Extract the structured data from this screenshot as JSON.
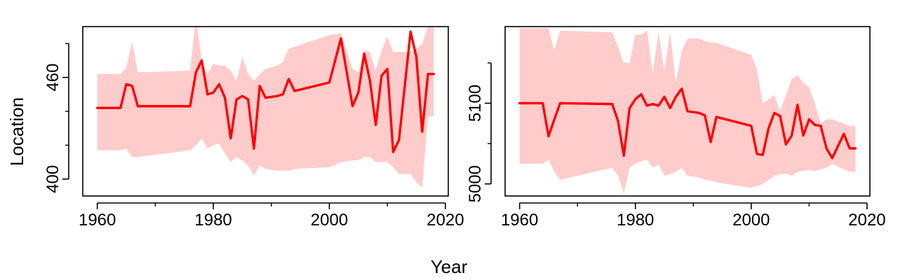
{
  "chart_data": [
    {
      "type": "line",
      "panel": "left",
      "xlabel": "Year",
      "ylabel": "Location",
      "xlim": [
        1957.5,
        2020.5
      ],
      "ylim": [
        390,
        490
      ],
      "xticks": [
        1960,
        1980,
        2000,
        2020
      ],
      "xtick_labels": [
        "1960",
        "1980",
        "2000",
        "2020"
      ],
      "xminor": [
        1970,
        1990,
        2010
      ],
      "yticks": [
        400,
        460
      ],
      "ytick_labels": [
        "400",
        "460"
      ],
      "yminor": [
        420,
        440,
        480
      ],
      "colors": {
        "line": "#ff0000",
        "band": "#ffcccc"
      },
      "series": [
        {
          "x": [
            1960,
            1964,
            1965,
            1966,
            1967,
            1976,
            1977,
            1978,
            1979,
            1980,
            1981,
            1982,
            1983,
            1984,
            1985,
            1986,
            1987,
            1988,
            1989,
            1991,
            1992,
            1993,
            1994,
            2000,
            2002,
            2004,
            2005,
            2006,
            2007,
            2008,
            2009,
            2010,
            2011,
            2012,
            2014,
            2015,
            2016,
            2017,
            2018
          ],
          "values": [
            442,
            442,
            456,
            455,
            443,
            443,
            463,
            470,
            450,
            451,
            456,
            448,
            424,
            447,
            449,
            447,
            418,
            455,
            448,
            449,
            450,
            459,
            452,
            457,
            483,
            443,
            451,
            474,
            458,
            432,
            461,
            465,
            416,
            423,
            487,
            472,
            428,
            462,
            462
          ],
          "lower": [
            417,
            417,
            418,
            413,
            413,
            417,
            420,
            424,
            418,
            420,
            421,
            415,
            410,
            413,
            411,
            408,
            402,
            408,
            406,
            405,
            405,
            405,
            406,
            407,
            410,
            411,
            411,
            413,
            413,
            410,
            410,
            410,
            407,
            403,
            403,
            398,
            395,
            437,
            437
          ],
          "upper": [
            462,
            462,
            466,
            481,
            463,
            464,
            496,
            470,
            462,
            468,
            467,
            467,
            464,
            458,
            472,
            462,
            458,
            462,
            465,
            467,
            469,
            477,
            478,
            485,
            486,
            465,
            463,
            476,
            475,
            464,
            476,
            484,
            475,
            475,
            475,
            477,
            480,
            490,
            490
          ]
        }
      ]
    },
    {
      "type": "line",
      "panel": "right",
      "xlabel": "Year",
      "ylabel": "",
      "xlim": [
        1957.5,
        2020.5
      ],
      "ylim": [
        4985,
        5195
      ],
      "xticks": [
        1960,
        1980,
        2000,
        2020
      ],
      "xtick_labels": [
        "1960",
        "1980",
        "2000",
        "2020"
      ],
      "xminor": [
        1970,
        1990,
        2010
      ],
      "yticks": [
        5000,
        5100
      ],
      "ytick_labels": [
        "5000",
        "5100"
      ],
      "yminor": [
        5050,
        5150
      ],
      "colors": {
        "line": "#ff0000",
        "band": "#ffcccc"
      },
      "series": [
        {
          "x": [
            1960,
            1964,
            1965,
            1966,
            1967,
            1976,
            1977,
            1978,
            1979,
            1980,
            1981,
            1982,
            1983,
            1984,
            1985,
            1986,
            1987,
            1988,
            1989,
            1991,
            1992,
            1993,
            1994,
            2000,
            2001,
            2002,
            2003,
            2004,
            2005,
            2006,
            2007,
            2008,
            2009,
            2010,
            2011,
            2012,
            2013,
            2014,
            2016,
            2017,
            2018
          ],
          "values": [
            5100,
            5100,
            5059,
            5080,
            5100,
            5099,
            5078,
            5035,
            5094,
            5105,
            5111,
            5097,
            5099,
            5097,
            5108,
            5094,
            5108,
            5118,
            5090,
            5088,
            5085,
            5052,
            5083,
            5072,
            5037,
            5036,
            5069,
            5088,
            5084,
            5049,
            5060,
            5098,
            5060,
            5080,
            5073,
            5072,
            5044,
            5032,
            5062,
            5044,
            5044
          ],
          "lower": [
            5025,
            5025,
            5030,
            5015,
            5005,
            5020,
            5010,
            4988,
            5020,
            5025,
            5028,
            5030,
            5020,
            5024,
            5010,
            5012,
            5015,
            5020,
            5010,
            5008,
            5005,
            5004,
            5002,
            4995,
            4997,
            5000,
            5005,
            5010,
            5012,
            5013,
            5010,
            5015,
            5016,
            5017,
            5016,
            5018,
            5020,
            5025,
            5018,
            5015,
            5015
          ],
          "upper": [
            5193,
            5193,
            5193,
            5165,
            5190,
            5188,
            5170,
            5150,
            5150,
            5185,
            5185,
            5190,
            5138,
            5188,
            5140,
            5188,
            5126,
            5165,
            5180,
            5180,
            5177,
            5175,
            5175,
            5160,
            5142,
            5100,
            5105,
            5110,
            5090,
            5110,
            5130,
            5135,
            5125,
            5120,
            5100,
            5075,
            5080,
            5080,
            5075,
            5072,
            5072
          ]
        }
      ]
    }
  ],
  "figure": {
    "xlabel": "Year",
    "ylabel": "Location"
  }
}
